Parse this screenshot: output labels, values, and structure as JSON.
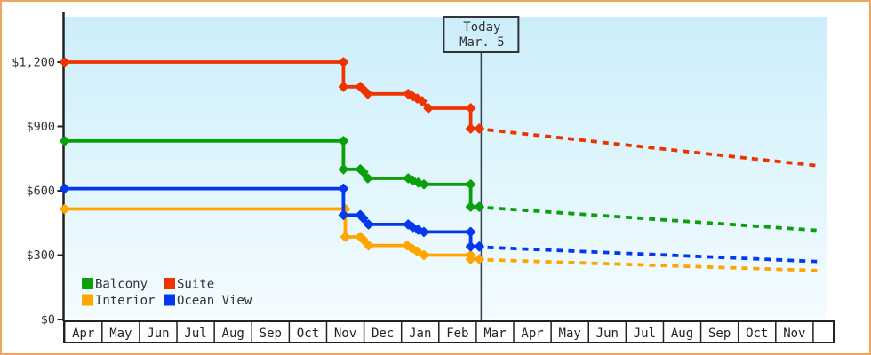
{
  "window": {
    "frame_border_color": "#eda55e",
    "background_color": "#ffffff"
  },
  "chart_data": {
    "type": "line",
    "title": "",
    "description": "Cruise cabin price history by category with dashed future price forecast",
    "currency": "USD",
    "plot": {
      "bg_top_color": "#cceefa",
      "bg_bottom_color": "#f4fcff",
      "axis_color": "#222222",
      "text_color": "#333333",
      "grid": false
    },
    "y_axis": {
      "min": 0,
      "max": 1410,
      "ticks": [
        {
          "label": "$0",
          "value": 0
        },
        {
          "label": "$300",
          "value": 300
        },
        {
          "label": "$600",
          "value": 600
        },
        {
          "label": "$900",
          "value": 900
        },
        {
          "label": "$1,200",
          "value": 1200
        }
      ]
    },
    "x_axis": {
      "unit": "month",
      "month_labels": [
        "Apr",
        "May",
        "Jun",
        "Jul",
        "Aug",
        "Sep",
        "Oct",
        "Nov",
        "Dec",
        "Jan",
        "Feb",
        "Mar",
        "Apr",
        "May",
        "Jun",
        "Jul",
        "Aug",
        "Sep",
        "Oct",
        "Nov"
      ]
    },
    "today": {
      "line1": "Today",
      "line2": "Mar. 5",
      "month_position": 11.13,
      "line_color": "#334455",
      "box_border_color": "#333333"
    },
    "series": [
      {
        "name": "Interior",
        "color": "#ffa500",
        "history": [
          [
            0,
            515
          ],
          [
            7.5,
            515
          ],
          [
            7.5,
            385
          ],
          [
            7.9,
            385
          ],
          [
            7.98,
            372
          ],
          [
            8.12,
            345
          ],
          [
            9.15,
            345
          ],
          [
            9.28,
            332
          ],
          [
            9.42,
            318
          ],
          [
            9.6,
            300
          ],
          [
            10.85,
            300
          ],
          [
            10.85,
            281
          ],
          [
            11.08,
            281
          ]
        ],
        "forecast": [
          [
            11.3,
            278
          ],
          [
            20.15,
            228
          ]
        ]
      },
      {
        "name": "Ocean View",
        "color": "#0438ee",
        "history": [
          [
            0,
            610
          ],
          [
            7.45,
            610
          ],
          [
            7.45,
            487
          ],
          [
            7.9,
            487
          ],
          [
            7.98,
            472
          ],
          [
            8.12,
            443
          ],
          [
            9.18,
            443
          ],
          [
            9.3,
            430
          ],
          [
            9.45,
            418
          ],
          [
            9.6,
            408
          ],
          [
            10.85,
            408
          ],
          [
            10.85,
            340
          ],
          [
            11.08,
            340
          ]
        ],
        "forecast": [
          [
            11.3,
            336
          ],
          [
            20.15,
            270
          ]
        ]
      },
      {
        "name": "Balcony",
        "color": "#0ba00b",
        "history": [
          [
            0,
            832
          ],
          [
            7.45,
            832
          ],
          [
            7.45,
            700
          ],
          [
            7.9,
            700
          ],
          [
            7.98,
            688
          ],
          [
            8.1,
            658
          ],
          [
            9.18,
            658
          ],
          [
            9.3,
            648
          ],
          [
            9.45,
            638
          ],
          [
            9.6,
            630
          ],
          [
            10.85,
            630
          ],
          [
            10.85,
            525
          ],
          [
            11.08,
            525
          ]
        ],
        "forecast": [
          [
            11.3,
            521
          ],
          [
            20.15,
            415
          ]
        ]
      },
      {
        "name": "Suite",
        "color": "#ee3300",
        "history": [
          [
            0,
            1200
          ],
          [
            7.45,
            1200
          ],
          [
            7.45,
            1085
          ],
          [
            7.9,
            1085
          ],
          [
            7.98,
            1072
          ],
          [
            8.1,
            1052
          ],
          [
            9.18,
            1052
          ],
          [
            9.3,
            1040
          ],
          [
            9.42,
            1030
          ],
          [
            9.55,
            1018
          ],
          [
            9.72,
            985
          ],
          [
            10.85,
            985
          ],
          [
            10.85,
            890
          ],
          [
            11.08,
            890
          ]
        ],
        "forecast": [
          [
            11.3,
            884
          ],
          [
            20.15,
            716
          ]
        ]
      }
    ],
    "legend": {
      "rows": [
        [
          "Balcony",
          "Suite"
        ],
        [
          "Interior",
          "Ocean View"
        ]
      ]
    }
  }
}
